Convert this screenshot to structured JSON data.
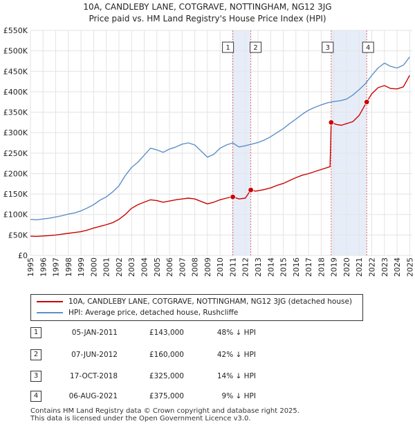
{
  "title_line1": "10A, CANDLEBY LANE, COTGRAVE, NOTTINGHAM, NG12 3JG",
  "title_line2": "Price paid vs. HM Land Registry's House Price Index (HPI)",
  "colors": {
    "property": "#cc0000",
    "hpi": "#5b8fc7",
    "shade": "#dde6f5",
    "marker_line": "#dd4444"
  },
  "legend": {
    "property_label": "10A, CANDLEBY LANE, COTGRAVE, NOTTINGHAM, NG12 3JG (detached house)",
    "hpi_label": "HPI: Average price, detached house, Rushcliffe"
  },
  "sales": [
    {
      "n": "1",
      "date": "05-JAN-2011",
      "price": "£143,000",
      "hpi": "48% ↓ HPI"
    },
    {
      "n": "2",
      "date": "07-JUN-2012",
      "price": "£160,000",
      "hpi": "42% ↓ HPI"
    },
    {
      "n": "3",
      "date": "17-OCT-2018",
      "price": "£325,000",
      "hpi": "14% ↓ HPI"
    },
    {
      "n": "4",
      "date": "06-AUG-2021",
      "price": "£375,000",
      "hpi": "9% ↓ HPI"
    }
  ],
  "footer_line1": "Contains HM Land Registry data © Crown copyright and database right 2025.",
  "footer_line2": "This data is licensed under the Open Government Licence v3.0.",
  "chart_data": {
    "type": "line",
    "title": "Price paid vs. HM Land Registry's House Price Index (HPI)",
    "xlim": [
      1995,
      2025.2
    ],
    "ylim": [
      0,
      550000
    ],
    "y_ticks": [
      0,
      50000,
      100000,
      150000,
      200000,
      250000,
      300000,
      350000,
      400000,
      450000,
      500000,
      550000
    ],
    "y_tick_labels": [
      "£0",
      "£50K",
      "£100K",
      "£150K",
      "£200K",
      "£250K",
      "£300K",
      "£350K",
      "£400K",
      "£450K",
      "£500K",
      "£550K"
    ],
    "x_ticks": [
      1995,
      1996,
      1997,
      1998,
      1999,
      2000,
      2001,
      2002,
      2003,
      2004,
      2005,
      2006,
      2007,
      2008,
      2009,
      2010,
      2011,
      2012,
      2013,
      2014,
      2015,
      2016,
      2017,
      2018,
      2019,
      2020,
      2021,
      2022,
      2023,
      2024,
      2025
    ],
    "x_tick_labels": [
      "1995",
      "1996",
      "1997",
      "1998",
      "1999",
      "2000",
      "2001",
      "2002",
      "2003",
      "2004",
      "2005",
      "2006",
      "2007",
      "2008",
      "2009",
      "2010",
      "2011",
      "2012",
      "2013",
      "2014",
      "2015",
      "2016",
      "2017",
      "2018",
      "2019",
      "2020",
      "2021",
      "2022",
      "2023",
      "2024",
      "2025"
    ],
    "sale_points": [
      {
        "n": "1",
        "x": 2011.01,
        "y": 143000
      },
      {
        "n": "2",
        "x": 2012.43,
        "y": 160000
      },
      {
        "n": "3",
        "x": 2018.79,
        "y": 325000
      },
      {
        "n": "4",
        "x": 2021.6,
        "y": 375000
      }
    ],
    "shaded_ranges": [
      [
        2011.01,
        2012.43
      ],
      [
        2018.79,
        2021.6
      ]
    ],
    "series": [
      {
        "name": "10A, CANDLEBY LANE, COTGRAVE, NOTTINGHAM, NG12 3JG (detached house)",
        "color": "#cc0000",
        "points": [
          [
            1995.0,
            47000
          ],
          [
            1995.5,
            46500
          ],
          [
            1996.0,
            47500
          ],
          [
            1996.5,
            48500
          ],
          [
            1997.0,
            50000
          ],
          [
            1997.5,
            52000
          ],
          [
            1998.0,
            54000
          ],
          [
            1998.5,
            56000
          ],
          [
            1999.0,
            58000
          ],
          [
            1999.5,
            62000
          ],
          [
            2000.0,
            67000
          ],
          [
            2000.5,
            71000
          ],
          [
            2001.0,
            75000
          ],
          [
            2001.5,
            80000
          ],
          [
            2002.0,
            88000
          ],
          [
            2002.5,
            100000
          ],
          [
            2003.0,
            115000
          ],
          [
            2003.5,
            124000
          ],
          [
            2004.0,
            130000
          ],
          [
            2004.5,
            136000
          ],
          [
            2005.0,
            134000
          ],
          [
            2005.5,
            130000
          ],
          [
            2006.0,
            133000
          ],
          [
            2006.5,
            136000
          ],
          [
            2007.0,
            138000
          ],
          [
            2007.5,
            140000
          ],
          [
            2008.0,
            138000
          ],
          [
            2008.5,
            132000
          ],
          [
            2009.0,
            126000
          ],
          [
            2009.5,
            130000
          ],
          [
            2010.0,
            136000
          ],
          [
            2010.5,
            140000
          ],
          [
            2011.01,
            143000
          ],
          [
            2011.5,
            138000
          ],
          [
            2012.0,
            140000
          ],
          [
            2012.43,
            160000
          ],
          [
            2012.8,
            157000
          ],
          [
            2013.5,
            161000
          ],
          [
            2014.0,
            165000
          ],
          [
            2014.5,
            171000
          ],
          [
            2015.0,
            176000
          ],
          [
            2015.5,
            183000
          ],
          [
            2016.0,
            190000
          ],
          [
            2016.5,
            196000
          ],
          [
            2017.0,
            200000
          ],
          [
            2017.5,
            205000
          ],
          [
            2018.0,
            210000
          ],
          [
            2018.7,
            217000
          ],
          [
            2018.79,
            325000
          ],
          [
            2019.2,
            320000
          ],
          [
            2019.6,
            318000
          ],
          [
            2020.0,
            322000
          ],
          [
            2020.5,
            327000
          ],
          [
            2021.0,
            342000
          ],
          [
            2021.6,
            375000
          ],
          [
            2022.0,
            395000
          ],
          [
            2022.5,
            410000
          ],
          [
            2023.0,
            415000
          ],
          [
            2023.5,
            408000
          ],
          [
            2024.0,
            407000
          ],
          [
            2024.5,
            412000
          ],
          [
            2025.0,
            440000
          ]
        ]
      },
      {
        "name": "HPI: Average price, detached house, Rushcliffe",
        "color": "#5b8fc7",
        "points": [
          [
            1995.0,
            88000
          ],
          [
            1995.5,
            87000
          ],
          [
            1996.0,
            89000
          ],
          [
            1996.5,
            91000
          ],
          [
            1997.0,
            94000
          ],
          [
            1997.5,
            97000
          ],
          [
            1998.0,
            101000
          ],
          [
            1998.5,
            104000
          ],
          [
            1999.0,
            109000
          ],
          [
            1999.5,
            116000
          ],
          [
            2000.0,
            124000
          ],
          [
            2000.5,
            135000
          ],
          [
            2001.0,
            143000
          ],
          [
            2001.5,
            155000
          ],
          [
            2002.0,
            170000
          ],
          [
            2002.5,
            195000
          ],
          [
            2003.0,
            215000
          ],
          [
            2003.5,
            228000
          ],
          [
            2004.0,
            245000
          ],
          [
            2004.5,
            262000
          ],
          [
            2005.0,
            258000
          ],
          [
            2005.5,
            252000
          ],
          [
            2006.0,
            260000
          ],
          [
            2006.5,
            265000
          ],
          [
            2007.0,
            272000
          ],
          [
            2007.5,
            275000
          ],
          [
            2008.0,
            270000
          ],
          [
            2008.5,
            255000
          ],
          [
            2009.0,
            240000
          ],
          [
            2009.5,
            247000
          ],
          [
            2010.0,
            262000
          ],
          [
            2010.5,
            270000
          ],
          [
            2011.0,
            275000
          ],
          [
            2011.5,
            265000
          ],
          [
            2012.0,
            268000
          ],
          [
            2012.5,
            272000
          ],
          [
            2013.0,
            276000
          ],
          [
            2013.5,
            282000
          ],
          [
            2014.0,
            290000
          ],
          [
            2014.5,
            300000
          ],
          [
            2015.0,
            310000
          ],
          [
            2015.5,
            322000
          ],
          [
            2016.0,
            333000
          ],
          [
            2016.5,
            345000
          ],
          [
            2017.0,
            355000
          ],
          [
            2017.5,
            362000
          ],
          [
            2018.0,
            368000
          ],
          [
            2018.5,
            373000
          ],
          [
            2019.0,
            376000
          ],
          [
            2019.5,
            378000
          ],
          [
            2020.0,
            382000
          ],
          [
            2020.5,
            392000
          ],
          [
            2021.0,
            405000
          ],
          [
            2021.5,
            420000
          ],
          [
            2022.0,
            440000
          ],
          [
            2022.5,
            458000
          ],
          [
            2023.0,
            470000
          ],
          [
            2023.5,
            462000
          ],
          [
            2024.0,
            458000
          ],
          [
            2024.5,
            465000
          ],
          [
            2025.0,
            485000
          ]
        ]
      }
    ]
  }
}
